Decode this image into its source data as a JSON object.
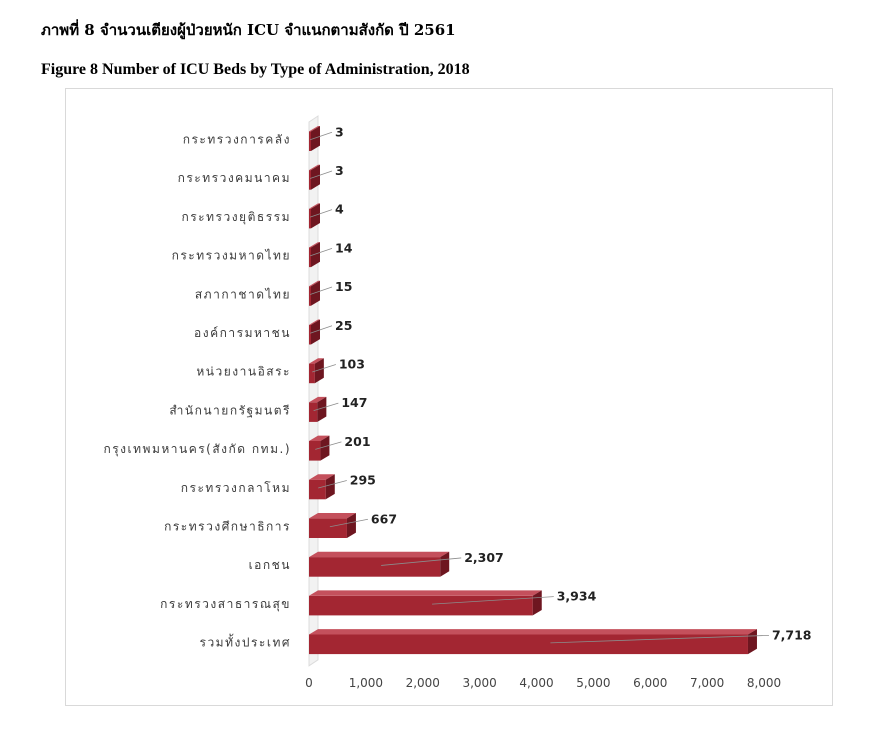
{
  "header": {
    "title_th": "ภาพที่ 8  จำนวนเตียงผู้ป่วยหนัก ICU จำแนกตามสังกัด ปี 2561",
    "title_en": "Figure 8 Number of ICU Beds by Type of Administration, 2018"
  },
  "chart_data": {
    "type": "bar",
    "orientation": "horizontal",
    "style": "3d",
    "categories": [
      "กระทรวงการคลัง",
      "กระทรวงคมนาคม",
      "กระทรวงยุติธรรม",
      "กระทรวงมหาดไทย",
      "สภากาชาดไทย",
      "องค์การมหาชน",
      "หน่วยงานอิสระ",
      "สำนักนายกรัฐมนตรี",
      "กรุงเทพมหานคร(สังกัด กทม.)",
      "กระทรวงกลาโหม",
      "กระทรวงศึกษาธิการ",
      "เอกชน",
      "กระทรวงสาธารณสุข",
      "รวมทั้งประเทศ"
    ],
    "values": [
      3,
      3,
      4,
      14,
      15,
      25,
      103,
      147,
      201,
      295,
      667,
      2307,
      3934,
      7718
    ],
    "value_labels": [
      "3",
      "3",
      "4",
      "14",
      "15",
      "25",
      "103",
      "147",
      "201",
      "295",
      "667",
      "2,307",
      "3,934",
      "7,718"
    ],
    "xlim": [
      0,
      8000
    ],
    "x_ticks": [
      0,
      1000,
      2000,
      3000,
      4000,
      5000,
      6000,
      7000,
      8000
    ],
    "x_tick_labels": [
      "0",
      "1,000",
      "2,000",
      "3,000",
      "4,000",
      "5,000",
      "6,000",
      "7,000",
      "8,000"
    ],
    "grid": false,
    "colors": {
      "bar_front": "#a32632",
      "bar_side": "#6e1620",
      "bar_top": "#c4505c",
      "leader": "#8c8c8c"
    }
  }
}
